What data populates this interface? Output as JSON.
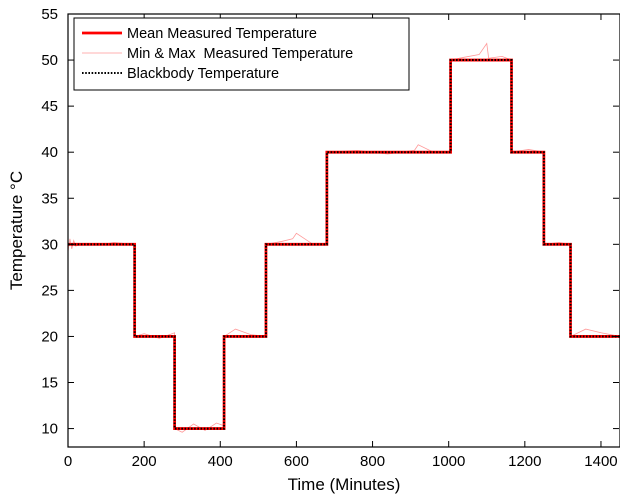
{
  "chart_data": {
    "type": "line",
    "title": "",
    "xlabel": "Time (Minutes)",
    "ylabel": "Temperature °C",
    "xlim": [
      0,
      1450
    ],
    "ylim": [
      8,
      55
    ],
    "xticks": [
      0,
      200,
      400,
      600,
      800,
      1000,
      1200,
      1400
    ],
    "yticks": [
      10,
      15,
      20,
      25,
      30,
      35,
      40,
      45,
      50,
      55
    ],
    "grid": false,
    "legend_position": "top-left",
    "series": [
      {
        "name": "Mean Measured Temperature",
        "color": "#ff0000",
        "style": "solid-thick",
        "x": [
          0,
          175,
          175,
          280,
          280,
          410,
          410,
          520,
          520,
          680,
          680,
          1005,
          1005,
          1165,
          1165,
          1250,
          1250,
          1320,
          1320,
          1450
        ],
        "y": [
          30,
          30,
          20,
          20,
          10,
          10,
          20,
          20,
          30,
          30,
          40,
          40,
          50,
          50,
          40,
          40,
          30,
          30,
          20,
          20
        ]
      },
      {
        "name": "Min & Max  Measured Temperature",
        "color": "#ff9999",
        "style": "solid-thin",
        "x": [
          0,
          5,
          10,
          15,
          20,
          40,
          80,
          120,
          175,
          175,
          200,
          240,
          280,
          280,
          300,
          330,
          360,
          390,
          410,
          410,
          440,
          480,
          520,
          520,
          560,
          590,
          600,
          640,
          680,
          680,
          760,
          840,
          910,
          920,
          960,
          1005,
          1005,
          1040,
          1080,
          1100,
          1105,
          1140,
          1165,
          1165,
          1210,
          1250,
          1250,
          1290,
          1320,
          1320,
          1360,
          1400,
          1450
        ],
        "y": [
          29.2,
          30.6,
          29.5,
          30.4,
          29.8,
          30.1,
          29.9,
          30.2,
          30.0,
          20.0,
          20.3,
          19.8,
          20.4,
          10.0,
          9.6,
          10.5,
          9.8,
          10.6,
          10.3,
          20.0,
          20.8,
          20.2,
          20.0,
          30.0,
          30.3,
          30.6,
          31.2,
          30.1,
          30.0,
          40.0,
          40.2,
          39.8,
          40.2,
          40.8,
          40.0,
          40.0,
          50.0,
          50.3,
          50.6,
          51.8,
          50.2,
          50.4,
          50.0,
          40.0,
          40.3,
          40.0,
          30.0,
          30.2,
          30.0,
          20.0,
          20.8,
          20.4,
          20.0
        ]
      },
      {
        "name": "Blackbody Temperature",
        "color": "#000000",
        "style": "dotted",
        "x": [
          0,
          175,
          175,
          280,
          280,
          410,
          410,
          520,
          520,
          680,
          680,
          1005,
          1005,
          1165,
          1165,
          1250,
          1250,
          1320,
          1320,
          1450
        ],
        "y": [
          30,
          30,
          20,
          20,
          10,
          10,
          20,
          20,
          30,
          30,
          40,
          40,
          50,
          50,
          40,
          40,
          30,
          30,
          20,
          20
        ]
      }
    ]
  }
}
